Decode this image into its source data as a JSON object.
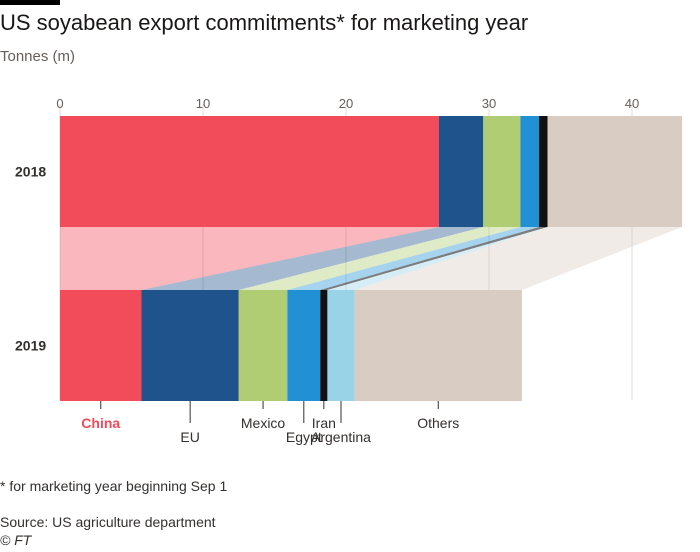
{
  "header": {
    "title": "US soyabean export commitments* for marketing year",
    "subtitle": "Tonnes (m)"
  },
  "footer": {
    "footnote": "* for marketing year beginning Sep 1",
    "source": "Source: US agriculture department",
    "copyright": "© FT"
  },
  "chart_data": {
    "type": "bar",
    "orientation": "horizontal",
    "stacked": true,
    "categories": [
      "2018",
      "2019"
    ],
    "xlim": [
      0,
      43.5
    ],
    "xticks": [
      0,
      10,
      20,
      30,
      40
    ],
    "grid": true,
    "legend": "labels below bars",
    "series": [
      {
        "name": "China",
        "values": [
          26.5,
          5.7
        ],
        "color": "#f24b5a",
        "highlight": true
      },
      {
        "name": "EU",
        "values": [
          3.1,
          6.8
        ],
        "color": "#1f538c"
      },
      {
        "name": "Mexico",
        "values": [
          2.6,
          3.4
        ],
        "color": "#b0cd73"
      },
      {
        "name": "Egypt",
        "values": [
          1.3,
          2.3
        ],
        "color": "#2190d5"
      },
      {
        "name": "Iran",
        "values": [
          0.6,
          0.5
        ],
        "color": "#111111"
      },
      {
        "name": "Argentina",
        "values": [
          0.0,
          1.9
        ],
        "color": "#99d3e7"
      },
      {
        "name": "Others",
        "values": [
          9.4,
          11.7
        ],
        "color": "#d9ccc2"
      }
    ]
  }
}
